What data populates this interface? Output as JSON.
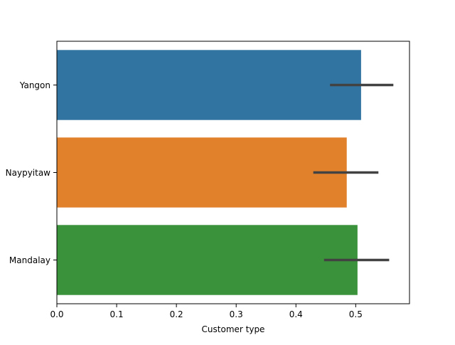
{
  "chart_data": {
    "type": "bar",
    "orientation": "horizontal",
    "categories": [
      "Yangon",
      "Naypyitaw",
      "Mandalay"
    ],
    "values": [
      0.509,
      0.485,
      0.503
    ],
    "error_intervals": [
      [
        0.457,
        0.563
      ],
      [
        0.429,
        0.538
      ],
      [
        0.447,
        0.556
      ]
    ],
    "colors": [
      "#3274a1",
      "#e1812c",
      "#3a923a"
    ],
    "error_bar_color": "#424242",
    "xlabel": "Customer type",
    "ylabel": "",
    "title": "",
    "xlim": [
      0,
      0.59
    ],
    "xticks": [
      "0.0",
      "0.1",
      "0.2",
      "0.3",
      "0.4",
      "0.5"
    ],
    "grid": false,
    "legend": "none"
  }
}
